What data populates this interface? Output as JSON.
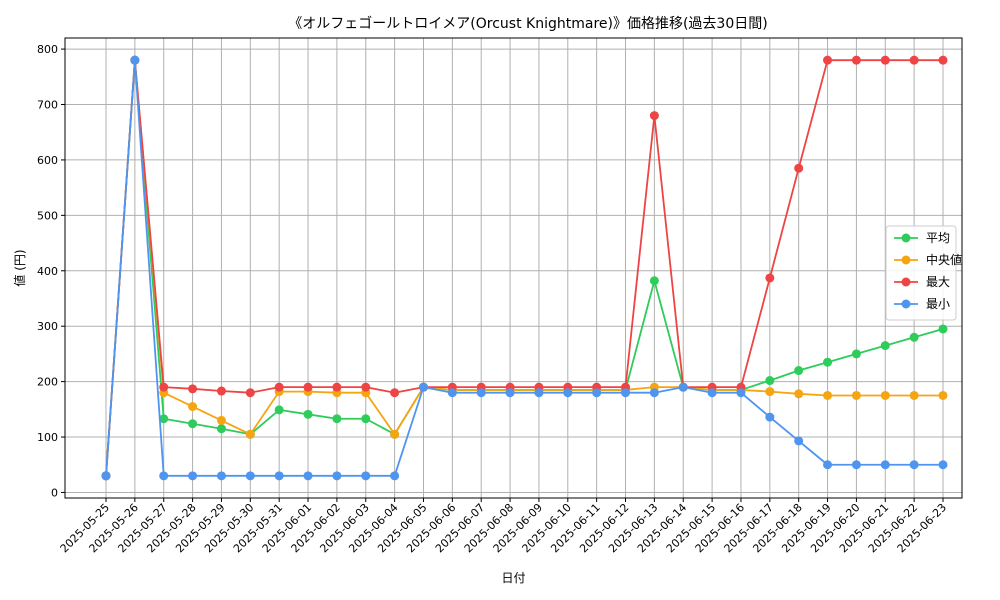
{
  "chart_data": {
    "type": "line",
    "title": "《オルフェゴールトロイメア(Orcust Knightmare)》価格推移(過去30日間)",
    "xlabel": "日付",
    "ylabel": "値 (円)",
    "ylim": [
      -10,
      820
    ],
    "yticks": [
      0,
      100,
      200,
      300,
      400,
      500,
      600,
      700,
      800
    ],
    "grid": true,
    "legend_position": "right",
    "categories": [
      "2025-05-25",
      "2025-05-26",
      "2025-05-27",
      "2025-05-28",
      "2025-05-29",
      "2025-05-30",
      "2025-05-31",
      "2025-06-01",
      "2025-06-02",
      "2025-06-03",
      "2025-06-04",
      "2025-06-05",
      "2025-06-06",
      "2025-06-07",
      "2025-06-08",
      "2025-06-09",
      "2025-06-10",
      "2025-06-11",
      "2025-06-12",
      "2025-06-13",
      "2025-06-14",
      "2025-06-15",
      "2025-06-16",
      "2025-06-17",
      "2025-06-18",
      "2025-06-19",
      "2025-06-20",
      "2025-06-21",
      "2025-06-22",
      "2025-06-23"
    ],
    "series": [
      {
        "name": "平均",
        "color": "#2ecc5a",
        "values": [
          30,
          780,
          133,
          124,
          115,
          105,
          149,
          141,
          133,
          133,
          105,
          190,
          185,
          185,
          185,
          185,
          185,
          185,
          185,
          382,
          190,
          185,
          185,
          202,
          220,
          235,
          250,
          265,
          280,
          295
        ]
      },
      {
        "name": "中央値",
        "color": "#f5a511",
        "values": [
          30,
          780,
          180,
          155,
          130,
          105,
          182,
          182,
          180,
          180,
          105,
          190,
          185,
          185,
          185,
          185,
          185,
          185,
          185,
          190,
          190,
          185,
          185,
          182,
          178,
          175,
          175,
          175,
          175,
          175
        ]
      },
      {
        "name": "最大",
        "color": "#ee4444",
        "values": [
          30,
          780,
          190,
          187,
          183,
          180,
          190,
          190,
          190,
          190,
          180,
          190,
          190,
          190,
          190,
          190,
          190,
          190,
          190,
          680,
          190,
          190,
          190,
          387,
          585,
          780,
          780,
          780,
          780,
          780
        ]
      },
      {
        "name": "最小",
        "color": "#4f95ef",
        "values": [
          30,
          780,
          30,
          30,
          30,
          30,
          30,
          30,
          30,
          30,
          30,
          190,
          180,
          180,
          180,
          180,
          180,
          180,
          180,
          180,
          190,
          180,
          180,
          136,
          93,
          50,
          50,
          50,
          50,
          50
        ]
      }
    ]
  }
}
